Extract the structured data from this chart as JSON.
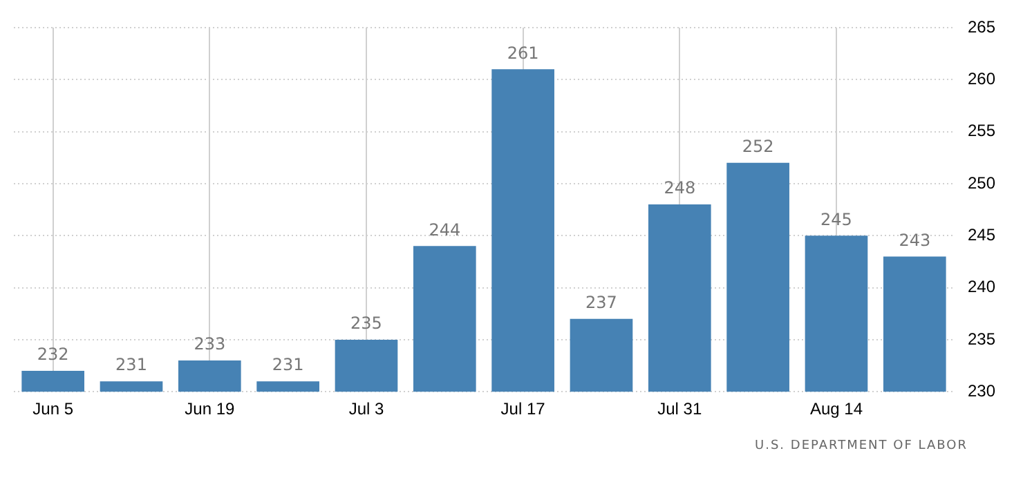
{
  "chart_data": {
    "type": "bar",
    "categories": [
      "Jun 5",
      null,
      "Jun 19",
      null,
      "Jul 3",
      null,
      "Jul 17",
      null,
      "Jul 31",
      null,
      "Aug 14",
      null
    ],
    "values": [
      232,
      231,
      233,
      231,
      235,
      244,
      261,
      237,
      248,
      252,
      245,
      243
    ],
    "color": "#4682b4",
    "ylim": [
      230,
      265
    ],
    "yticks": [
      230,
      235,
      240,
      245,
      250,
      255,
      260,
      265
    ],
    "grid": true,
    "data_labels": true,
    "annotations": [
      "U.S. DEPARTMENT OF LABOR"
    ]
  }
}
